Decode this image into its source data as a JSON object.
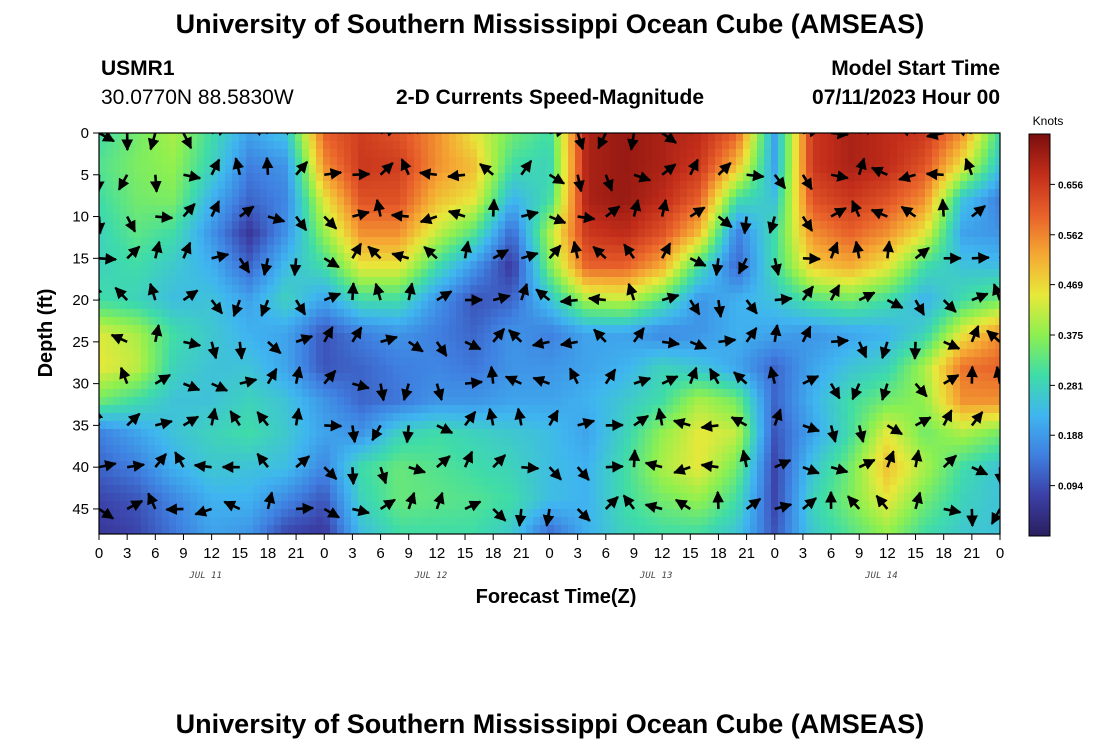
{
  "header": {
    "main_title": "University of Southern Mississippi Ocean Cube (AMSEAS)",
    "station_id": "USMR1",
    "station_coords": "30.0770N  88.5830W",
    "plot_title": "2-D Currents Speed-Magnitude",
    "model_start_label": "Model Start Time",
    "model_start_value": "07/11/2023 Hour 00"
  },
  "footer": {
    "repeat_title": "University of Southern Mississippi Ocean Cube (AMSEAS)"
  },
  "chart_data": {
    "type": "heatmap",
    "title": "2-D Currents Speed-Magnitude",
    "xlabel": "Forecast Time(Z)",
    "ylabel": "Depth (ft)",
    "x_tick_labels": [
      "0",
      "3",
      "6",
      "9",
      "12",
      "15",
      "18",
      "21",
      "0",
      "3",
      "6",
      "9",
      "12",
      "15",
      "18",
      "21",
      "0",
      "3",
      "6",
      "9",
      "12",
      "15",
      "18",
      "21",
      "0",
      "3",
      "6",
      "9",
      "12",
      "15",
      "18",
      "21",
      "0"
    ],
    "x_range_hours": [
      0,
      96
    ],
    "day_labels": [
      {
        "text": "JUL 11",
        "hour": 12
      },
      {
        "text": "JUL 12",
        "hour": 36
      },
      {
        "text": "JUL 13",
        "hour": 60
      },
      {
        "text": "JUL 14",
        "hour": 84
      }
    ],
    "y_ticks": [
      0,
      5,
      10,
      15,
      20,
      25,
      30,
      35,
      40,
      45
    ],
    "y_range_ft": [
      0,
      48
    ],
    "y_inverted": true,
    "colorbar": {
      "units": "Knots",
      "ticks": [
        "0.656",
        "0.562",
        "0.469",
        "0.375",
        "0.281",
        "0.188",
        "0.094"
      ],
      "range": [
        0.0,
        0.75
      ],
      "colors": [
        "#2a1f5e",
        "#3b3fa6",
        "#3f7fe0",
        "#3fb5f0",
        "#3fdca8",
        "#8cf050",
        "#e8e83a",
        "#f5a833",
        "#e8602a",
        "#c22d1a",
        "#7a0d0d"
      ]
    },
    "arrow_depths_ft": [
      0,
      5,
      10,
      15,
      20,
      25,
      30,
      35,
      40,
      45
    ],
    "arrow_interval_hours": 3,
    "speed_grid": {
      "depths_ft": [
        0,
        4,
        8,
        12,
        16,
        20,
        24,
        28,
        32,
        36,
        40,
        44,
        48
      ],
      "hours": [
        0,
        4,
        8,
        12,
        16,
        20,
        24,
        28,
        32,
        36,
        40,
        44,
        48,
        52,
        56,
        60,
        64,
        68,
        72,
        76,
        80,
        84,
        88,
        92,
        96
      ],
      "values": [
        [
          0.3,
          0.35,
          0.4,
          0.3,
          0.2,
          0.25,
          0.6,
          0.65,
          0.62,
          0.55,
          0.45,
          0.35,
          0.3,
          0.7,
          0.72,
          0.7,
          0.68,
          0.6,
          0.2,
          0.66,
          0.7,
          0.68,
          0.66,
          0.55,
          0.3
        ],
        [
          0.32,
          0.36,
          0.38,
          0.28,
          0.15,
          0.18,
          0.55,
          0.66,
          0.65,
          0.55,
          0.5,
          0.3,
          0.28,
          0.7,
          0.72,
          0.7,
          0.66,
          0.5,
          0.2,
          0.66,
          0.7,
          0.68,
          0.62,
          0.45,
          0.25
        ],
        [
          0.3,
          0.35,
          0.36,
          0.22,
          0.12,
          0.16,
          0.45,
          0.62,
          0.62,
          0.5,
          0.45,
          0.22,
          0.3,
          0.7,
          0.72,
          0.68,
          0.6,
          0.3,
          0.25,
          0.62,
          0.66,
          0.62,
          0.55,
          0.25,
          0.15
        ],
        [
          0.28,
          0.33,
          0.3,
          0.18,
          0.06,
          0.18,
          0.38,
          0.55,
          0.55,
          0.42,
          0.32,
          0.12,
          0.4,
          0.66,
          0.68,
          0.62,
          0.5,
          0.15,
          0.3,
          0.55,
          0.6,
          0.55,
          0.45,
          0.2,
          0.18
        ],
        [
          0.28,
          0.3,
          0.26,
          0.22,
          0.12,
          0.24,
          0.3,
          0.45,
          0.45,
          0.3,
          0.18,
          0.06,
          0.36,
          0.6,
          0.6,
          0.52,
          0.3,
          0.12,
          0.3,
          0.48,
          0.52,
          0.45,
          0.3,
          0.25,
          0.24
        ],
        [
          0.3,
          0.28,
          0.24,
          0.25,
          0.2,
          0.28,
          0.2,
          0.3,
          0.3,
          0.18,
          0.1,
          0.12,
          0.25,
          0.4,
          0.42,
          0.32,
          0.18,
          0.22,
          0.25,
          0.32,
          0.35,
          0.3,
          0.22,
          0.3,
          0.35
        ],
        [
          0.44,
          0.4,
          0.3,
          0.26,
          0.22,
          0.2,
          0.1,
          0.15,
          0.18,
          0.15,
          0.12,
          0.18,
          0.15,
          0.2,
          0.2,
          0.16,
          0.18,
          0.22,
          0.2,
          0.18,
          0.2,
          0.22,
          0.28,
          0.45,
          0.55
        ],
        [
          0.45,
          0.42,
          0.28,
          0.25,
          0.25,
          0.2,
          0.1,
          0.12,
          0.15,
          0.16,
          0.14,
          0.18,
          0.18,
          0.2,
          0.22,
          0.28,
          0.25,
          0.2,
          0.12,
          0.2,
          0.25,
          0.28,
          0.4,
          0.58,
          0.6
        ],
        [
          0.35,
          0.3,
          0.25,
          0.25,
          0.28,
          0.25,
          0.18,
          0.12,
          0.14,
          0.18,
          0.18,
          0.2,
          0.2,
          0.22,
          0.26,
          0.3,
          0.4,
          0.35,
          0.12,
          0.22,
          0.3,
          0.35,
          0.38,
          0.55,
          0.55
        ],
        [
          0.15,
          0.2,
          0.25,
          0.28,
          0.3,
          0.26,
          0.2,
          0.18,
          0.28,
          0.3,
          0.28,
          0.26,
          0.24,
          0.2,
          0.28,
          0.38,
          0.45,
          0.42,
          0.1,
          0.2,
          0.3,
          0.45,
          0.35,
          0.4,
          0.35
        ],
        [
          0.12,
          0.15,
          0.22,
          0.26,
          0.25,
          0.24,
          0.16,
          0.3,
          0.34,
          0.32,
          0.3,
          0.28,
          0.24,
          0.22,
          0.3,
          0.4,
          0.45,
          0.35,
          0.08,
          0.25,
          0.35,
          0.5,
          0.4,
          0.3,
          0.25
        ],
        [
          0.08,
          0.1,
          0.16,
          0.22,
          0.22,
          0.16,
          0.1,
          0.28,
          0.34,
          0.33,
          0.32,
          0.3,
          0.24,
          0.22,
          0.3,
          0.35,
          0.38,
          0.3,
          0.08,
          0.28,
          0.36,
          0.45,
          0.35,
          0.28,
          0.25
        ],
        [
          0.06,
          0.08,
          0.14,
          0.2,
          0.18,
          0.08,
          0.06,
          0.24,
          0.3,
          0.3,
          0.3,
          0.26,
          0.12,
          0.22,
          0.28,
          0.3,
          0.3,
          0.25,
          0.1,
          0.26,
          0.32,
          0.38,
          0.3,
          0.26,
          0.25
        ]
      ]
    }
  }
}
